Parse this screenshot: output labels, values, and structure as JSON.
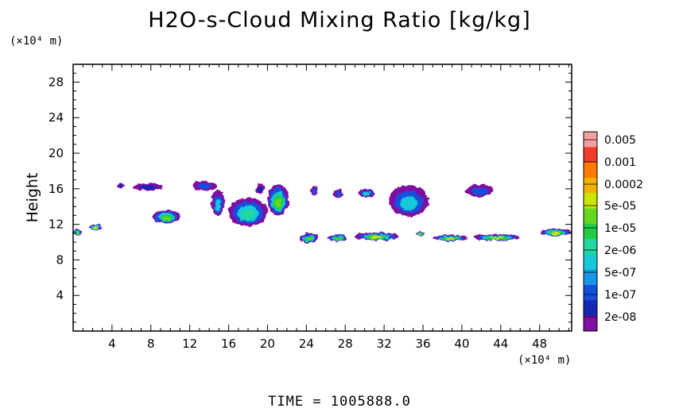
{
  "chart_data": {
    "type": "heatmap",
    "title": "H2O-s-Cloud Mixing Ratio [kg/kg]",
    "ylabel": "Height",
    "xlabel": "",
    "x_unit": "(×10⁴ m)",
    "y_unit": "(×10⁴ m)",
    "xlim": [
      0,
      51.3
    ],
    "ylim": [
      0,
      30
    ],
    "x_ticks": [
      4,
      8,
      12,
      16,
      20,
      24,
      28,
      32,
      36,
      40,
      44,
      48
    ],
    "y_ticks": [
      4,
      8,
      12,
      16,
      20,
      24,
      28
    ],
    "footer": "TIME = 1005888.0",
    "colorbar": {
      "labels": [
        "0.005",
        "0.001",
        "0.0002",
        "5e-05",
        "1e-05",
        "2e-06",
        "5e-07",
        "1e-07",
        "2e-08"
      ],
      "colors": [
        "#f5a0a0",
        "#f03c28",
        "#ff7a00",
        "#f0b400",
        "#c8e600",
        "#66d822",
        "#22cc44",
        "#22d8a0",
        "#18c8d8",
        "#1896e6",
        "#1450dc",
        "#1428b4",
        "#8010a0"
      ]
    },
    "features": [
      {
        "x": [
          4.6,
          5.3
        ],
        "y": [
          16.1,
          16.6
        ],
        "level": "1e-07"
      },
      {
        "x": [
          6.2,
          9.2
        ],
        "y": [
          15.8,
          16.6
        ],
        "level": "1e-07"
      },
      {
        "x": [
          8.2,
          11.0
        ],
        "y": [
          12.1,
          13.6
        ],
        "level": "5e-05"
      },
      {
        "x": [
          12.3,
          14.8
        ],
        "y": [
          15.8,
          16.9
        ],
        "level": "5e-07"
      },
      {
        "x": [
          14.2,
          15.6
        ],
        "y": [
          13.0,
          15.8
        ],
        "level": "2e-06"
      },
      {
        "x": [
          16.0,
          20.0
        ],
        "y": [
          11.8,
          15.0
        ],
        "level": "1e-05"
      },
      {
        "x": [
          18.8,
          19.7
        ],
        "y": [
          15.4,
          16.6
        ],
        "level": "1e-07"
      },
      {
        "x": [
          20.0,
          22.2
        ],
        "y": [
          13.0,
          16.5
        ],
        "level": "5e-05"
      },
      {
        "x": [
          24.4,
          25.2
        ],
        "y": [
          15.3,
          16.2
        ],
        "level": "5e-07"
      },
      {
        "x": [
          26.8,
          27.8
        ],
        "y": [
          15.0,
          16.0
        ],
        "level": "5e-07"
      },
      {
        "x": [
          29.4,
          31.0
        ],
        "y": [
          15.0,
          16.0
        ],
        "level": "2e-06"
      },
      {
        "x": [
          32.5,
          36.6
        ],
        "y": [
          12.9,
          16.4
        ],
        "level": "2e-06"
      },
      {
        "x": [
          40.4,
          43.2
        ],
        "y": [
          15.1,
          16.5
        ],
        "level": "5e-07"
      },
      {
        "x": [
          0.0,
          0.9
        ],
        "y": [
          10.8,
          11.4
        ],
        "level": "5e-05"
      },
      {
        "x": [
          1.6,
          3.0
        ],
        "y": [
          11.3,
          12.0
        ],
        "level": "0.0002"
      },
      {
        "x": [
          23.3,
          25.2
        ],
        "y": [
          9.9,
          11.0
        ],
        "level": "5e-05"
      },
      {
        "x": [
          26.2,
          28.2
        ],
        "y": [
          10.1,
          10.8
        ],
        "level": "5e-05"
      },
      {
        "x": [
          29.0,
          33.5
        ],
        "y": [
          10.2,
          11.1
        ],
        "level": "0.0002"
      },
      {
        "x": [
          35.2,
          36.2
        ],
        "y": [
          10.7,
          11.2
        ],
        "level": "5e-05"
      },
      {
        "x": [
          37.0,
          40.6
        ],
        "y": [
          10.1,
          10.8
        ],
        "level": "0.0002"
      },
      {
        "x": [
          41.2,
          46.0
        ],
        "y": [
          10.2,
          10.9
        ],
        "level": "0.0002"
      },
      {
        "x": [
          48.0,
          51.3
        ],
        "y": [
          10.7,
          11.5
        ],
        "level": "0.0002"
      }
    ]
  }
}
